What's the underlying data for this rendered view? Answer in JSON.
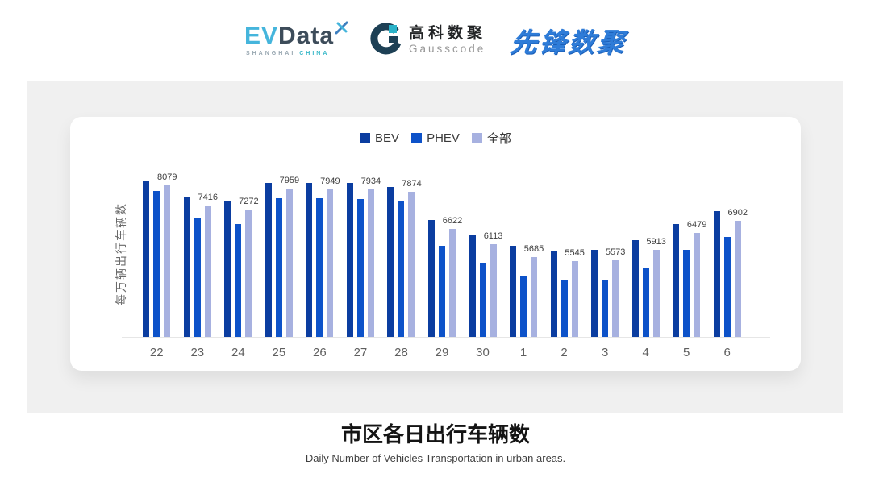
{
  "header": {
    "logos": {
      "evdata": {
        "ev": "EV",
        "data": "Data",
        "sub_left": "SHANGHAI",
        "sub_right": "CHINA"
      },
      "gausscode": {
        "cn": "高科数聚",
        "en": "Gausscode"
      },
      "xianfeng": {
        "text": "先锋数聚"
      }
    }
  },
  "chart_data": {
    "type": "bar",
    "title": "市区各日出行车辆数",
    "subtitle": "Daily Number of Vehicles Transportation in urban areas.",
    "ylabel": "每万辆出行车辆数",
    "categories": [
      "22",
      "23",
      "24",
      "25",
      "26",
      "27",
      "28",
      "29",
      "30",
      "1",
      "2",
      "3",
      "4",
      "5",
      "6"
    ],
    "series": [
      {
        "name": "BEV",
        "color": "#0b3da0",
        "labeled": false,
        "estimated": true,
        "values": [
          8230,
          7690,
          7570,
          8160,
          8160,
          8160,
          8030,
          6930,
          6430,
          6040,
          5890,
          5930,
          6230,
          6790,
          7220
        ]
      },
      {
        "name": "PHEV",
        "color": "#0d52c9",
        "labeled": false,
        "estimated": true,
        "values": [
          7880,
          6980,
          6780,
          7660,
          7640,
          7610,
          7560,
          6060,
          5490,
          5020,
          4930,
          4910,
          5310,
          5910,
          6340
        ]
      },
      {
        "name": "全部",
        "color": "#a7b1e0",
        "labeled": true,
        "estimated": false,
        "values": [
          8079,
          7416,
          7272,
          7959,
          7949,
          7934,
          7874,
          6622,
          6113,
          5685,
          5545,
          5573,
          5913,
          6479,
          6902
        ]
      }
    ],
    "ylim": [
      3000,
      8700
    ],
    "legend_position": "top-center",
    "grid": false,
    "axis_line_color": "#e6e6e6"
  },
  "colors": {
    "panel_bg": "#f0f0f0",
    "evdata_blue": "#45b5dc",
    "evdata_dark": "#3d4c5a",
    "gausscode_dark": "#1d4055",
    "gausscode_teal": "#2ab3c9",
    "xianfeng_blue": "#2e7cd8"
  }
}
